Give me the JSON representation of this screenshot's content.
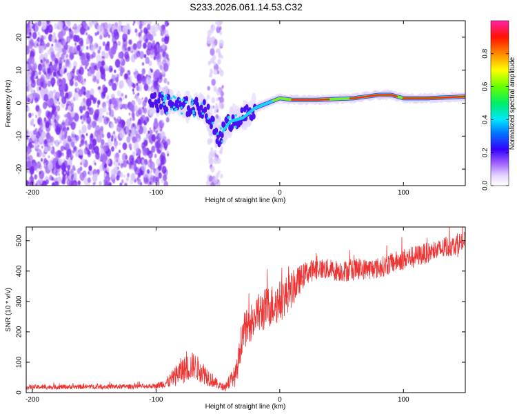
{
  "title": "S233.2026.061.14.53.C32",
  "chart_data": [
    {
      "type": "heatmap",
      "name": "spectrogram",
      "xlabel": "Height of straight line (km)",
      "ylabel": "Frequency (Hz)",
      "xlim": [
        -205,
        150
      ],
      "ylim": [
        -25,
        25
      ],
      "xticks": [
        -200,
        -100,
        0,
        100
      ],
      "yticks": [
        -20,
        -10,
        0,
        10,
        20
      ],
      "ridge_x": [
        -100,
        -80,
        -60,
        -50,
        -40,
        -30,
        -20,
        -10,
        0,
        10,
        30,
        60,
        80,
        90,
        100,
        120,
        150
      ],
      "ridge_y": [
        0.5,
        -1,
        -1.5,
        -10.5,
        -5.5,
        -4.5,
        -1.5,
        0,
        1.5,
        1,
        1,
        1.5,
        2.5,
        2.5,
        1.5,
        1.5,
        2
      ],
      "colorbar": {
        "label": "Normalized spectral amplitude",
        "ticks": [
          0.0,
          0.2,
          0.4,
          0.6,
          0.8
        ],
        "range": [
          0,
          1
        ]
      }
    },
    {
      "type": "line",
      "name": "snr",
      "xlabel": "Height of straight line (km)",
      "ylabel": "SNR (10 * v/v)",
      "xlim": [
        -205,
        150
      ],
      "ylim": [
        0,
        545
      ],
      "xticks": [
        -200,
        -100,
        0,
        100
      ],
      "yticks": [
        0,
        100,
        200,
        300,
        400,
        500
      ],
      "color": "#ee3333",
      "trend_x": [
        -205,
        -120,
        -100,
        -90,
        -80,
        -70,
        -60,
        -50,
        -45,
        -35,
        -30,
        -25,
        -20,
        -10,
        0,
        10,
        20,
        30,
        50,
        80,
        100,
        130,
        150
      ],
      "trend_y": [
        18,
        20,
        22,
        35,
        70,
        90,
        60,
        25,
        18,
        60,
        200,
        220,
        250,
        280,
        300,
        340,
        390,
        410,
        400,
        410,
        440,
        470,
        500
      ],
      "noise": [
        8,
        8,
        8,
        20,
        45,
        45,
        35,
        15,
        10,
        40,
        60,
        60,
        70,
        70,
        70,
        60,
        40,
        35,
        35,
        35,
        35,
        35,
        35
      ]
    }
  ]
}
